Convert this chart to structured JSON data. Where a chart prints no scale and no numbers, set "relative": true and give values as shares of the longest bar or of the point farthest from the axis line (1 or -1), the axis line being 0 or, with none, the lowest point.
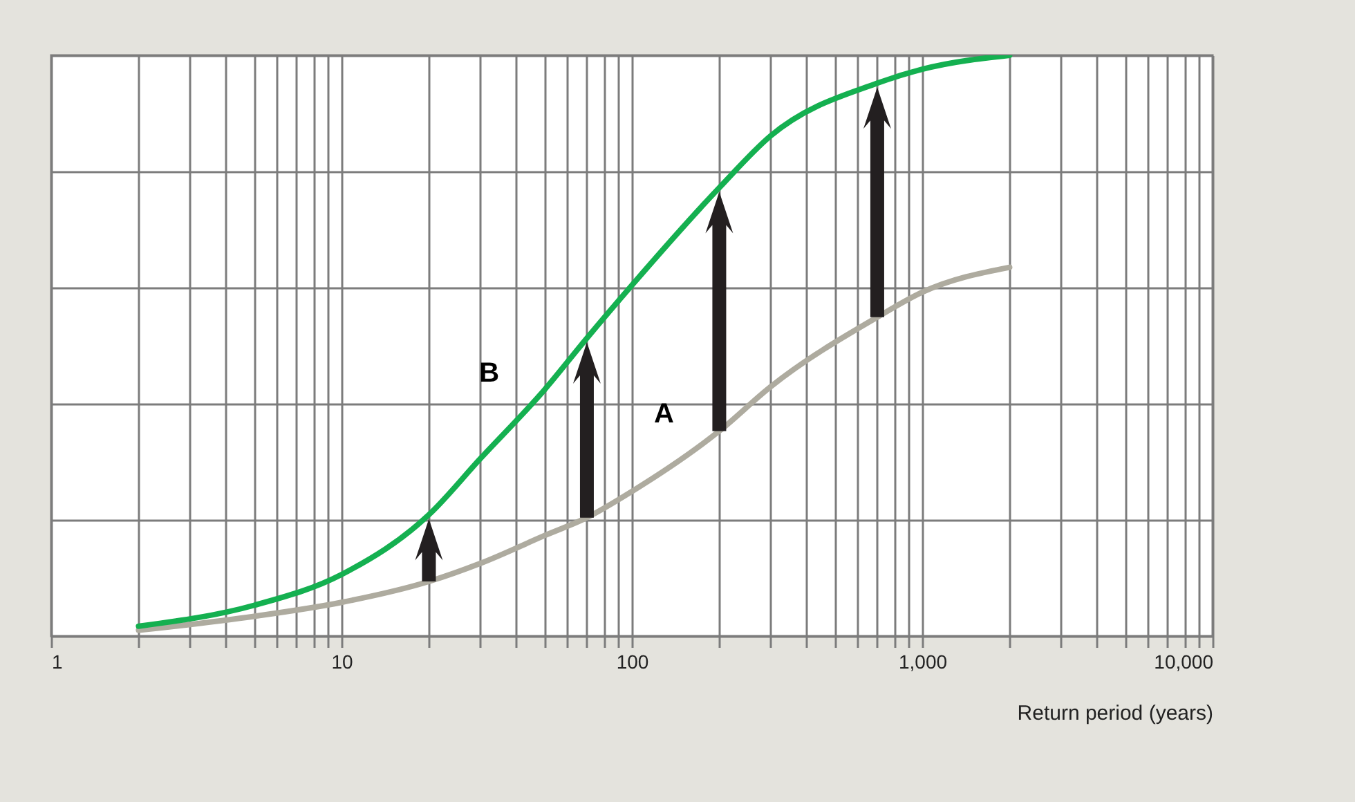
{
  "chart_data": {
    "type": "line",
    "relative": true,
    "xlabel": "Return period (years)",
    "x": [
      2,
      5,
      10,
      20,
      30,
      50,
      70,
      100,
      200,
      300,
      700,
      1000,
      2000
    ],
    "series": [
      {
        "name": "A",
        "color": "#aeab9f",
        "values": [
          0.01,
          0.034,
          0.058,
          0.094,
          0.125,
          0.173,
          0.204,
          0.249,
          0.353,
          0.429,
          0.549,
          0.592,
          0.635
        ]
      },
      {
        "name": "B",
        "color": "#14b050",
        "values": [
          0.017,
          0.053,
          0.106,
          0.209,
          0.305,
          0.424,
          0.513,
          0.604,
          0.772,
          0.861,
          0.952,
          0.976,
          1
        ]
      }
    ],
    "log": "x",
    "xlim": [
      1,
      10000
    ],
    "xticks": [
      1,
      {
        "value": 2,
        "label": null
      },
      {
        "value": 3,
        "label": null
      },
      {
        "value": 4,
        "label": null
      },
      {
        "value": 5,
        "label": null
      },
      {
        "value": 6,
        "label": null
      },
      {
        "value": 7,
        "label": null
      },
      {
        "value": 8,
        "label": null
      },
      {
        "value": 9,
        "label": null
      },
      10,
      {
        "value": 20,
        "label": null
      },
      {
        "value": 30,
        "label": null
      },
      {
        "value": 40,
        "label": null
      },
      {
        "value": 50,
        "label": null
      },
      {
        "value": 60,
        "label": null
      },
      {
        "value": 70,
        "label": null
      },
      {
        "value": 80,
        "label": null
      },
      {
        "value": 90,
        "label": null
      },
      100,
      {
        "value": 200,
        "label": null
      },
      {
        "value": 300,
        "label": null
      },
      {
        "value": 400,
        "label": null
      },
      {
        "value": 500,
        "label": null
      },
      {
        "value": 600,
        "label": null
      },
      {
        "value": 700,
        "label": null
      },
      {
        "value": 800,
        "label": null
      },
      {
        "value": 900,
        "label": null
      },
      {
        "value": 1000,
        "label": "1,000"
      },
      {
        "value": 2000,
        "label": null
      },
      {
        "value": 3000,
        "label": null
      },
      {
        "value": 4000,
        "label": null
      },
      {
        "value": 5000,
        "label": null
      },
      {
        "value": 6000,
        "label": null
      },
      {
        "value": 7000,
        "label": null
      },
      {
        "value": 8000,
        "label": null
      },
      {
        "value": 9000,
        "label": null
      },
      {
        "value": 10000,
        "label": "10,000"
      }
    ],
    "grid": true,
    "legend": false
  }
}
